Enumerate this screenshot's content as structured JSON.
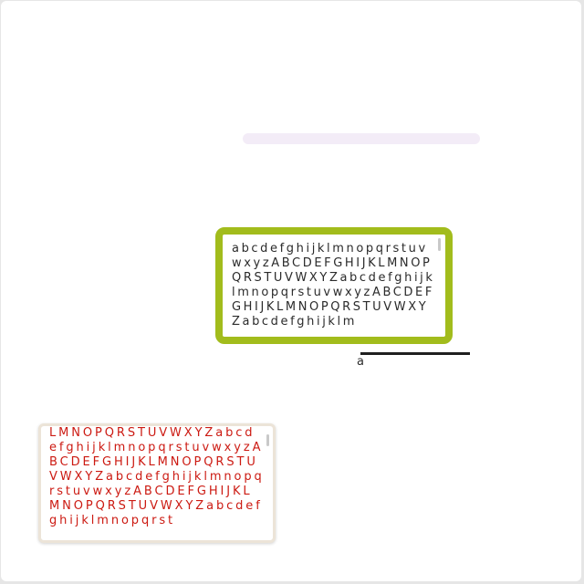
{
  "progress": {
    "value_percent": 0,
    "track_color": "#f3ecf7"
  },
  "green_textarea": {
    "text": "abcdefghijklmnopqrstuvwxyzABCDEFGHIJKLMNOPQRSTUVWXYZabcdefghijklmnopqrstuvwxyzABCDEFGHIJKLMNOPQRSTUVWXYZabcdefghijklm",
    "border_color": "#a2bc1c",
    "text_color": "#2b2b2b"
  },
  "slider": {
    "label": "a"
  },
  "red_textarea": {
    "text": "LMNOPQRSTUVWXYZabcdefghijklmnopqrstuvwxyzABCDEFGHIJKLMNOPQRSTUVWXYZabcdefghijklmnopqrstuvwxyzABCDEFGHIJKLMNOPQRSTUVWXYZabcdefghijklmnopqrst",
    "text_color": "#cc1a12"
  }
}
